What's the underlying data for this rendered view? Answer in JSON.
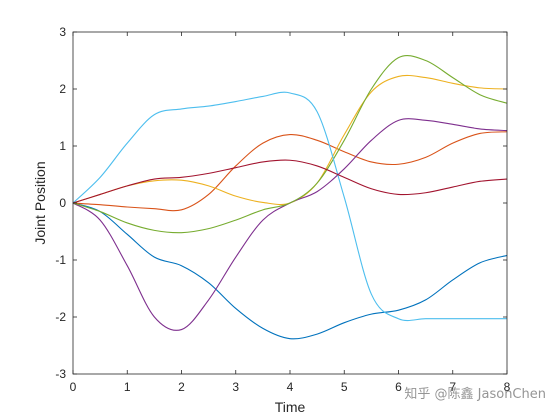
{
  "chart_data": {
    "type": "line",
    "xlabel": "Time",
    "ylabel": "Joint Position",
    "xlim": [
      0,
      8
    ],
    "ylim": [
      -3,
      3
    ],
    "xticks": [
      "0",
      "1",
      "2",
      "3",
      "4",
      "5",
      "6",
      "7",
      "8"
    ],
    "yticks": [
      "-3",
      "-2",
      "-1",
      "0",
      "1",
      "2",
      "3"
    ],
    "grid": false,
    "x": [
      0,
      0.5,
      1,
      1.5,
      2,
      2.5,
      3,
      3.5,
      4,
      4.5,
      5,
      5.5,
      6,
      6.5,
      7,
      7.5,
      8
    ],
    "series": [
      {
        "color": "#0072BD",
        "values": [
          0,
          -0.15,
          -0.55,
          -0.95,
          -1.1,
          -1.4,
          -1.85,
          -2.2,
          -2.38,
          -2.3,
          -2.1,
          -1.95,
          -1.88,
          -1.7,
          -1.35,
          -1.05,
          -0.92
        ]
      },
      {
        "color": "#D95319",
        "values": [
          0,
          -0.03,
          -0.07,
          -0.1,
          -0.12,
          0.15,
          0.65,
          1.05,
          1.2,
          1.1,
          0.9,
          0.72,
          0.68,
          0.8,
          1.05,
          1.22,
          1.25
        ]
      },
      {
        "color": "#EDB120",
        "values": [
          0,
          0.15,
          0.3,
          0.39,
          0.4,
          0.3,
          0.12,
          0.01,
          0.0,
          0.35,
          1.2,
          1.95,
          2.22,
          2.2,
          2.1,
          2.02,
          2.0
        ]
      },
      {
        "color": "#7E2F8E",
        "values": [
          0,
          -0.3,
          -1.1,
          -2.0,
          -2.22,
          -1.7,
          -0.95,
          -0.3,
          0.0,
          0.2,
          0.6,
          1.1,
          1.45,
          1.45,
          1.38,
          1.3,
          1.27
        ]
      },
      {
        "color": "#77AC30",
        "values": [
          0,
          -0.15,
          -0.35,
          -0.48,
          -0.52,
          -0.45,
          -0.3,
          -0.12,
          0.0,
          0.35,
          1.1,
          2.0,
          2.55,
          2.5,
          2.2,
          1.9,
          1.75
        ]
      },
      {
        "color": "#4DBEEE",
        "values": [
          0,
          0.45,
          1.05,
          1.55,
          1.65,
          1.7,
          1.78,
          1.87,
          1.93,
          1.6,
          0.1,
          -1.6,
          -2.03,
          -2.03,
          -2.03,
          -2.03,
          -2.03
        ]
      },
      {
        "color": "#A2142F",
        "values": [
          0,
          0.15,
          0.3,
          0.42,
          0.45,
          0.52,
          0.62,
          0.72,
          0.75,
          0.65,
          0.45,
          0.25,
          0.15,
          0.18,
          0.28,
          0.38,
          0.42
        ]
      }
    ]
  },
  "watermark": "知乎 @陈鑫 JasonChen"
}
